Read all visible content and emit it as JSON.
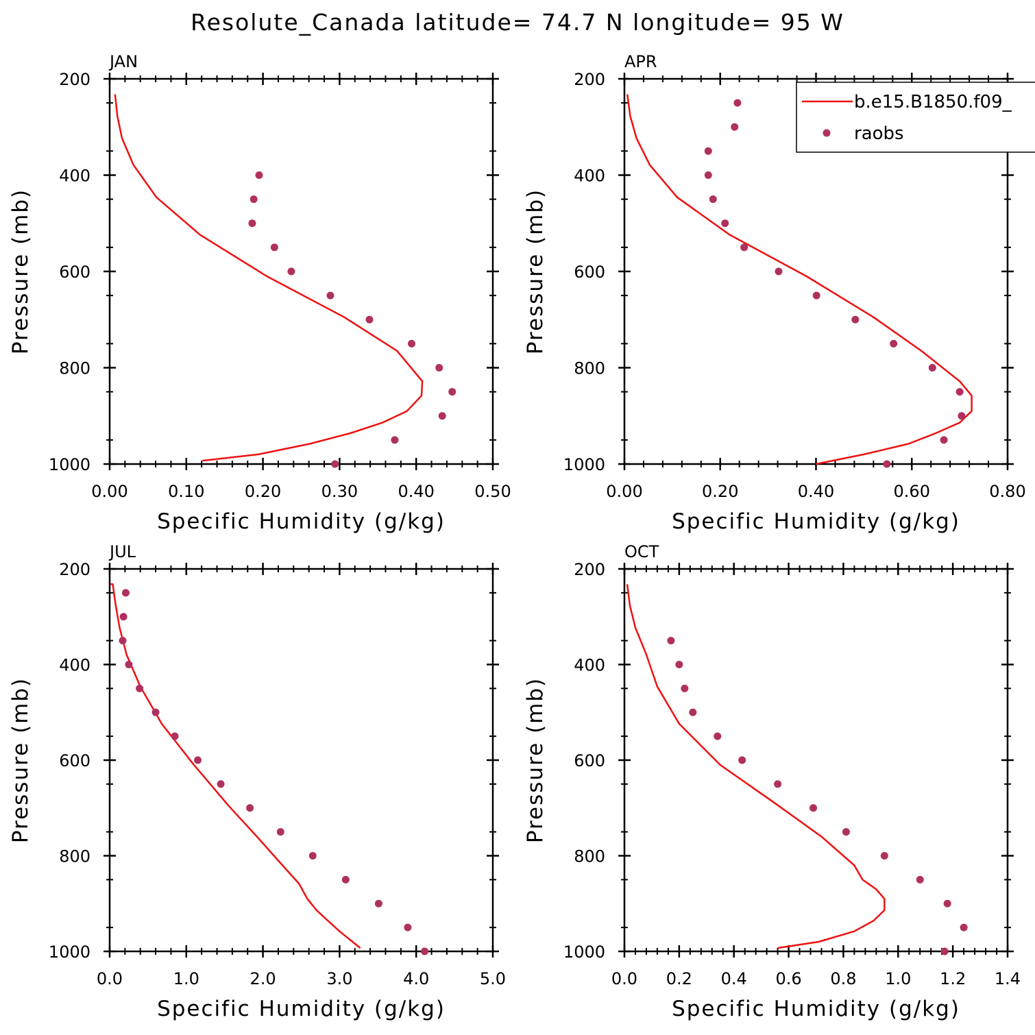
{
  "page_title": "Resolute_Canada  latitude= 74.7 N longitude= 95 W",
  "colors": {
    "model_line": "#ee1111",
    "obs_marker": "#b03060",
    "axes": "#000000"
  },
  "legend": {
    "model_label": "b.e15.B1850.f09_",
    "obs_label": "raobs",
    "placement": "top-right of APR panel"
  },
  "chart_data": [
    {
      "type": "line+scatter",
      "title": "JAN",
      "xlabel": "Specific Humidity (g/kg)",
      "ylabel": "Pressure (mb)",
      "xlim": [
        0,
        0.5
      ],
      "ylim": [
        200,
        1000
      ],
      "xticks": [
        0,
        0.1,
        0.2,
        0.3,
        0.4,
        0.5
      ],
      "xtick_labels": [
        "0.00",
        "0.10",
        "0.20",
        "0.30",
        "0.40",
        "0.50"
      ],
      "yticks": [
        200,
        400,
        600,
        800,
        1000
      ],
      "ytick_labels": [
        "200",
        "400",
        "600",
        "800",
        "1000"
      ],
      "series": [
        {
          "name": "b.e15.B1850.f09_",
          "kind": "line",
          "x": [
            0.121,
            0.194,
            0.261,
            0.314,
            0.356,
            0.388,
            0.407,
            0.408,
            0.375,
            0.306,
            0.205,
            0.118,
            0.061,
            0.031,
            0.016,
            0.01,
            0.007
          ],
          "y": [
            993,
            980,
            958,
            936,
            914,
            890,
            858,
            828,
            765,
            695,
            610,
            524,
            446,
            379,
            323,
            277,
            232
          ]
        },
        {
          "name": "raobs",
          "kind": "scatter",
          "x": [
            0.294,
            0.372,
            0.434,
            0.447,
            0.43,
            0.394,
            0.339,
            0.288,
            0.237,
            0.215,
            0.186,
            0.188,
            0.195
          ],
          "y": [
            1000,
            950,
            900,
            850,
            800,
            750,
            700,
            650,
            600,
            550,
            500,
            450,
            400
          ]
        }
      ]
    },
    {
      "type": "line+scatter",
      "title": "APR",
      "xlabel": "Specific Humidity (g/kg)",
      "ylabel": "Pressure (mb)",
      "xlim": [
        0,
        0.8
      ],
      "ylim": [
        200,
        1000
      ],
      "xticks": [
        0,
        0.2,
        0.4,
        0.6,
        0.8
      ],
      "xtick_labels": [
        "0.00",
        "0.20",
        "0.40",
        "0.60",
        "0.80"
      ],
      "yticks": [
        200,
        400,
        600,
        800,
        1000
      ],
      "ytick_labels": [
        "200",
        "400",
        "600",
        "800",
        "1000"
      ],
      "series": [
        {
          "name": "b.e15.B1850.f09_",
          "kind": "line",
          "x": [
            0.4,
            0.5,
            0.593,
            0.65,
            0.7,
            0.725,
            0.725,
            0.7,
            0.62,
            0.52,
            0.38,
            0.22,
            0.11,
            0.053,
            0.025,
            0.012,
            0.006
          ],
          "y": [
            1000,
            980,
            958,
            936,
            914,
            890,
            858,
            828,
            765,
            695,
            610,
            524,
            446,
            379,
            323,
            277,
            232
          ]
        },
        {
          "name": "raobs",
          "kind": "scatter",
          "x": [
            0.548,
            0.667,
            0.704,
            0.7,
            0.643,
            0.562,
            0.482,
            0.401,
            0.322,
            0.25,
            0.21,
            0.185,
            0.175,
            0.175,
            0.23,
            0.236
          ],
          "y": [
            1000,
            950,
            900,
            850,
            800,
            750,
            700,
            650,
            600,
            550,
            500,
            450,
            400,
            350,
            300,
            250
          ]
        }
      ]
    },
    {
      "type": "line+scatter",
      "title": "JUL",
      "xlabel": "Specific Humidity (g/kg)",
      "ylabel": "Pressure (mb)",
      "xlim": [
        0,
        5.0
      ],
      "ylim": [
        200,
        1000
      ],
      "xticks": [
        0,
        1,
        2,
        3,
        4,
        5
      ],
      "xtick_labels": [
        "0.0",
        "1.0",
        "2.0",
        "3.0",
        "4.0",
        "5.0"
      ],
      "yticks": [
        200,
        400,
        600,
        800,
        1000
      ],
      "ytick_labels": [
        "200",
        "400",
        "600",
        "800",
        "1000"
      ],
      "series": [
        {
          "name": "b.e15.B1850.f09_",
          "kind": "line",
          "x": [
            3.27,
            3.0,
            2.85,
            2.7,
            2.58,
            2.47,
            2.3,
            1.95,
            1.55,
            1.1,
            0.68,
            0.4,
            0.22,
            0.13,
            0.08,
            0.04,
            0.01
          ],
          "y": [
            993,
            958,
            936,
            914,
            890,
            858,
            828,
            765,
            695,
            610,
            524,
            446,
            379,
            323,
            277,
            232,
            232
          ]
        },
        {
          "name": "raobs",
          "kind": "scatter",
          "x": [
            4.11,
            3.89,
            3.51,
            3.08,
            2.65,
            2.23,
            1.83,
            1.45,
            1.15,
            0.85,
            0.6,
            0.39,
            0.25,
            0.17,
            0.18,
            0.21
          ],
          "y": [
            1000,
            950,
            900,
            850,
            800,
            750,
            700,
            650,
            600,
            550,
            500,
            450,
            400,
            350,
            300,
            250
          ]
        }
      ]
    },
    {
      "type": "line+scatter",
      "title": "OCT",
      "xlabel": "Specific Humidity (g/kg)",
      "ylabel": "Pressure (mb)",
      "xlim": [
        0,
        1.4
      ],
      "ylim": [
        200,
        1000
      ],
      "xticks": [
        0,
        0.2,
        0.4,
        0.6,
        0.8,
        1.0,
        1.2,
        1.4
      ],
      "xtick_labels": [
        "0.0",
        "0.2",
        "0.4",
        "0.6",
        "0.8",
        "1.0",
        "1.2",
        "1.4"
      ],
      "yticks": [
        200,
        400,
        600,
        800,
        1000
      ],
      "ytick_labels": [
        "200",
        "400",
        "600",
        "800",
        "1000"
      ],
      "series": [
        {
          "name": "b.e15.B1850.f09_",
          "kind": "line",
          "x": [
            0.56,
            0.71,
            0.84,
            0.91,
            0.95,
            0.95,
            0.92,
            0.87,
            0.84,
            0.72,
            0.55,
            0.35,
            0.2,
            0.12,
            0.08,
            0.04,
            0.02,
            0.01
          ],
          "y": [
            993,
            980,
            958,
            936,
            914,
            890,
            870,
            850,
            820,
            760,
            690,
            610,
            524,
            446,
            379,
            323,
            277,
            232
          ]
        },
        {
          "name": "raobs",
          "kind": "scatter",
          "x": [
            1.17,
            1.24,
            1.18,
            1.08,
            0.95,
            0.81,
            0.69,
            0.56,
            0.43,
            0.34,
            0.25,
            0.22,
            0.2,
            0.17
          ],
          "y": [
            1000,
            950,
            900,
            850,
            800,
            750,
            700,
            650,
            600,
            550,
            500,
            450,
            400,
            350
          ]
        }
      ]
    }
  ]
}
